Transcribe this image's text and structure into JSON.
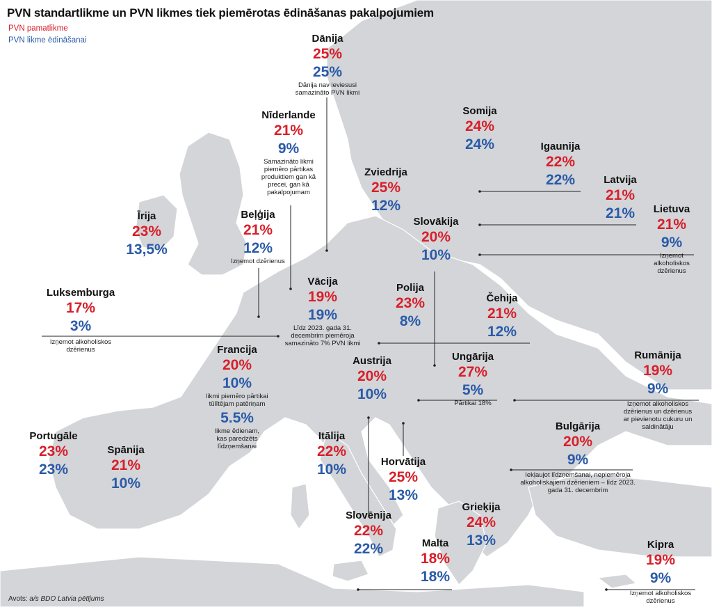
{
  "header": {
    "title": "PVN standartlikme un PVN likmes tiek piemērotas ēdināšanas pakalpojumiem",
    "legend_standard": "PVN pamatlikme",
    "legend_food": "PVN likme ēdināšanai"
  },
  "footer": {
    "source_label": "Avots:",
    "source_text": "a/s BDO Latvia pētījums"
  },
  "colors": {
    "standard_rate": "#d81f2a",
    "food_rate": "#2a5aa8",
    "land": "#d3d5d8",
    "sea": "#ffffff",
    "borders": "#ffffff"
  },
  "countries": {
    "denmark": {
      "name": "Dānija",
      "std": "25%",
      "food": "25%",
      "note": "Dānija nav ieviesusi samazināto PVN likmi"
    },
    "finland": {
      "name": "Somija",
      "std": "24%",
      "food": "24%"
    },
    "netherlands": {
      "name": "Nīderlande",
      "std": "21%",
      "food": "9%",
      "note": "Samazināto likmi piemēro pārtikas produktiem gan kā precei, gan kā pakalpojumam"
    },
    "estonia": {
      "name": "Igaunija",
      "std": "22%",
      "food": "22%"
    },
    "sweden": {
      "name": "Zviedrija",
      "std": "25%",
      "food": "12%"
    },
    "latvia": {
      "name": "Latvija",
      "std": "21%",
      "food": "21%"
    },
    "ireland": {
      "name": "Īrija",
      "std": "23%",
      "food": "13,5%"
    },
    "belgium": {
      "name": "Beļģija",
      "std": "21%",
      "food": "12%",
      "note": "Izņemot dzērienus"
    },
    "slovakia": {
      "name": "Slovākija",
      "std": "20%",
      "food": "10%"
    },
    "lithuania": {
      "name": "Lietuva",
      "std": "21%",
      "food": "9%",
      "note": "Izņemot alkoholiskos dzērienus"
    },
    "luxembourg": {
      "name": "Luksemburga",
      "std": "17%",
      "food": "3%",
      "note": "Izņemot alkoholiskos dzērienus"
    },
    "germany": {
      "name": "Vācija",
      "std": "19%",
      "food": "19%",
      "note": "Līdz 2023. gada 31. decembrim piemēroja samazināto 7% PVN likmi"
    },
    "poland": {
      "name": "Polija",
      "std": "23%",
      "food": "8%"
    },
    "czechia": {
      "name": "Čehija",
      "std": "21%",
      "food": "12%"
    },
    "france": {
      "name": "Francija",
      "std": "20%",
      "food": "10%",
      "note": "likmi piemēro pārtikai tūlītējam patēriņam",
      "food2": "5.5%",
      "note2": "likme ēdienam, kas paredzēts līdzņemšanai"
    },
    "austria": {
      "name": "Austrija",
      "std": "20%",
      "food": "10%"
    },
    "hungary": {
      "name": "Ungārija",
      "std": "27%",
      "food": "5%",
      "note": "Pārtikai 18%"
    },
    "romania": {
      "name": "Rumānija",
      "std": "19%",
      "food": "9%",
      "note": "Izņemot alkoholiskos dzērienus un dzērienus ar pievienotu cukuru un saldinātāju"
    },
    "portugal": {
      "name": "Portugāle",
      "std": "23%",
      "food": "23%"
    },
    "spain": {
      "name": "Spānija",
      "std": "21%",
      "food": "10%"
    },
    "italy": {
      "name": "Itālija",
      "std": "22%",
      "food": "10%"
    },
    "bulgaria": {
      "name": "Bulgārija",
      "std": "20%",
      "food": "9%",
      "note": "Iekļaujot līdzņemšanai, nepiemēroja alkoholiskajiem dzērieniem – līdz 2023. gada 31. decembrim"
    },
    "croatia": {
      "name": "Horvātija",
      "std": "25%",
      "food": "13%"
    },
    "greece": {
      "name": "Grieķija",
      "std": "24%",
      "food": "13%"
    },
    "slovenia": {
      "name": "Slovēnija",
      "std": "22%",
      "food": "22%"
    },
    "malta": {
      "name": "Malta",
      "std": "18%",
      "food": "18%"
    },
    "cyprus": {
      "name": "Kipra",
      "std": "19%",
      "food": "9%",
      "note": "Izņemot alkoholiskos dzērienus"
    }
  }
}
